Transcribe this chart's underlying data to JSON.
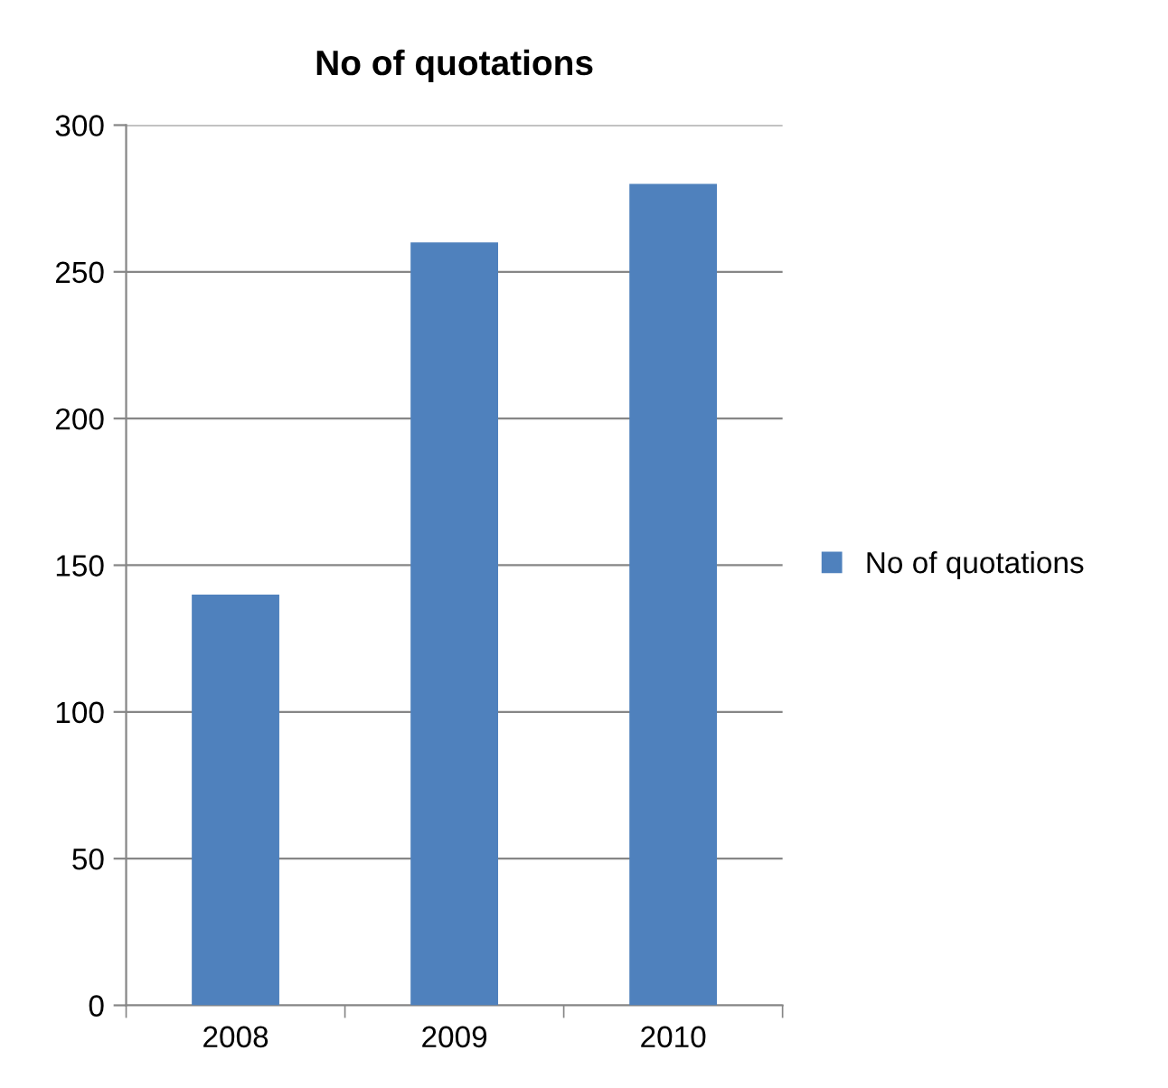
{
  "chart_data": {
    "type": "bar",
    "title": "No of quotations",
    "categories": [
      "2008",
      "2009",
      "2010"
    ],
    "series": [
      {
        "name": "No of quotations",
        "color": "#4f81bd",
        "values": [
          140,
          260,
          280
        ]
      }
    ],
    "ylim": [
      0,
      300
    ],
    "yticks": [
      0,
      50,
      100,
      150,
      200,
      250,
      300
    ],
    "grid": "y",
    "legend": "right"
  }
}
